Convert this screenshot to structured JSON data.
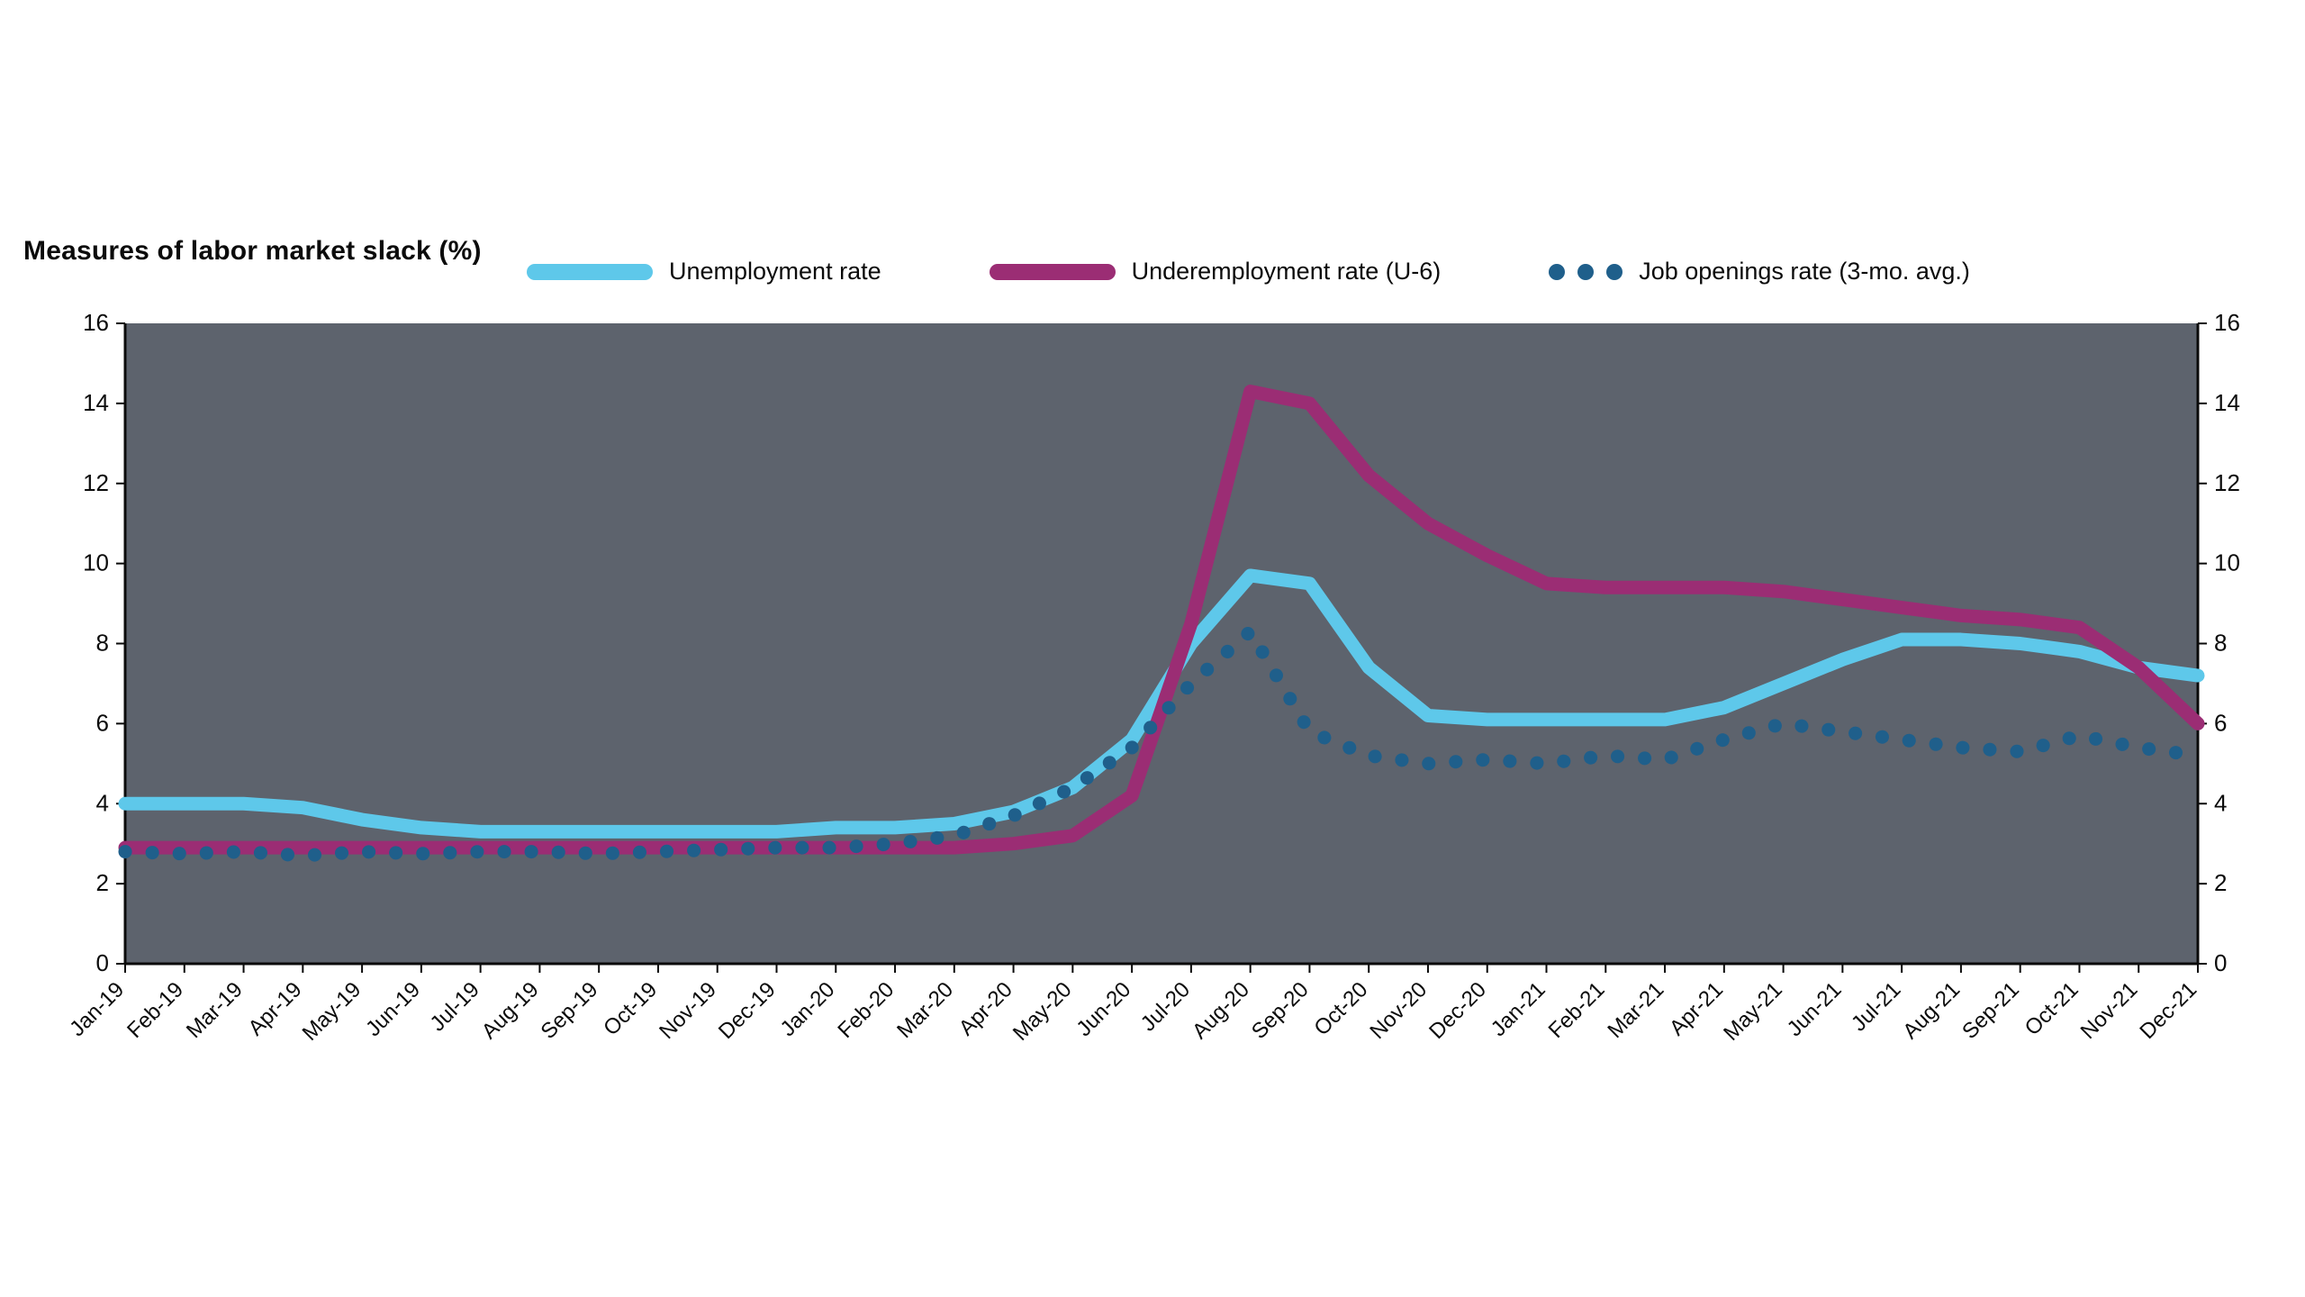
{
  "chart_data": {
    "type": "line",
    "title": "Measures of labor market slack (%)",
    "xlabel": "",
    "ylabel": "",
    "ylim": [
      0,
      16
    ],
    "ytick_step": 2,
    "grid": false,
    "legend_position": "top",
    "plot_background": "#5d636d",
    "categories": [
      "Jan-19",
      "Feb-19",
      "Mar-19",
      "Apr-19",
      "May-19",
      "Jun-19",
      "Jul-19",
      "Aug-19",
      "Sep-19",
      "Oct-19",
      "Nov-19",
      "Dec-19",
      "Jan-20",
      "Feb-20",
      "Mar-20",
      "Apr-20",
      "May-20",
      "Jun-20",
      "Jul-20",
      "Aug-20",
      "Sep-20",
      "Oct-20",
      "Nov-20",
      "Dec-20",
      "Jan-21",
      "Feb-21",
      "Mar-21",
      "Apr-21",
      "May-21",
      "Jun-21",
      "Jul-21",
      "Aug-21",
      "Sep-21",
      "Oct-21",
      "Nov-21",
      "Dec-21"
    ],
    "series": [
      {
        "name": "Unemployment rate",
        "color": "#5ec8ea",
        "style": "line",
        "values": [
          4.0,
          4.0,
          4.0,
          3.9,
          3.6,
          3.4,
          3.3,
          3.3,
          3.3,
          3.3,
          3.3,
          3.3,
          3.4,
          3.4,
          3.5,
          3.8,
          4.4,
          5.6,
          8.0,
          9.7,
          9.5,
          7.4,
          6.2,
          6.1,
          6.1,
          6.1,
          6.1,
          6.4,
          7.0,
          7.6,
          8.1,
          8.1,
          8.0,
          7.8,
          7.4,
          7.2
        ]
      },
      {
        "name": "Underemployment rate (U-6)",
        "color": "#9b2d74",
        "style": "line",
        "values": [
          2.9,
          2.9,
          2.9,
          2.9,
          2.9,
          2.9,
          2.9,
          2.9,
          2.9,
          2.9,
          2.9,
          2.9,
          2.9,
          2.9,
          2.9,
          3.0,
          3.2,
          4.2,
          8.5,
          14.3,
          14.0,
          12.2,
          11.0,
          10.2,
          9.5,
          9.4,
          9.4,
          9.4,
          9.3,
          9.1,
          8.9,
          8.7,
          8.6,
          8.4,
          7.4,
          6.0
        ]
      },
      {
        "name": "Job openings rate (3-mo. avg.)",
        "color": "#1f5f8b",
        "style": "dots",
        "values": [
          2.8,
          2.75,
          2.8,
          2.7,
          2.8,
          2.75,
          2.8,
          2.8,
          2.75,
          2.8,
          2.85,
          2.9,
          2.9,
          3.0,
          3.2,
          3.7,
          4.4,
          5.4,
          7.0,
          8.3,
          5.8,
          5.2,
          5.0,
          5.1,
          5.0,
          5.2,
          5.1,
          5.6,
          6.0,
          5.8,
          5.6,
          5.4,
          5.3,
          5.7,
          5.4,
          5.2
        ]
      }
    ]
  }
}
